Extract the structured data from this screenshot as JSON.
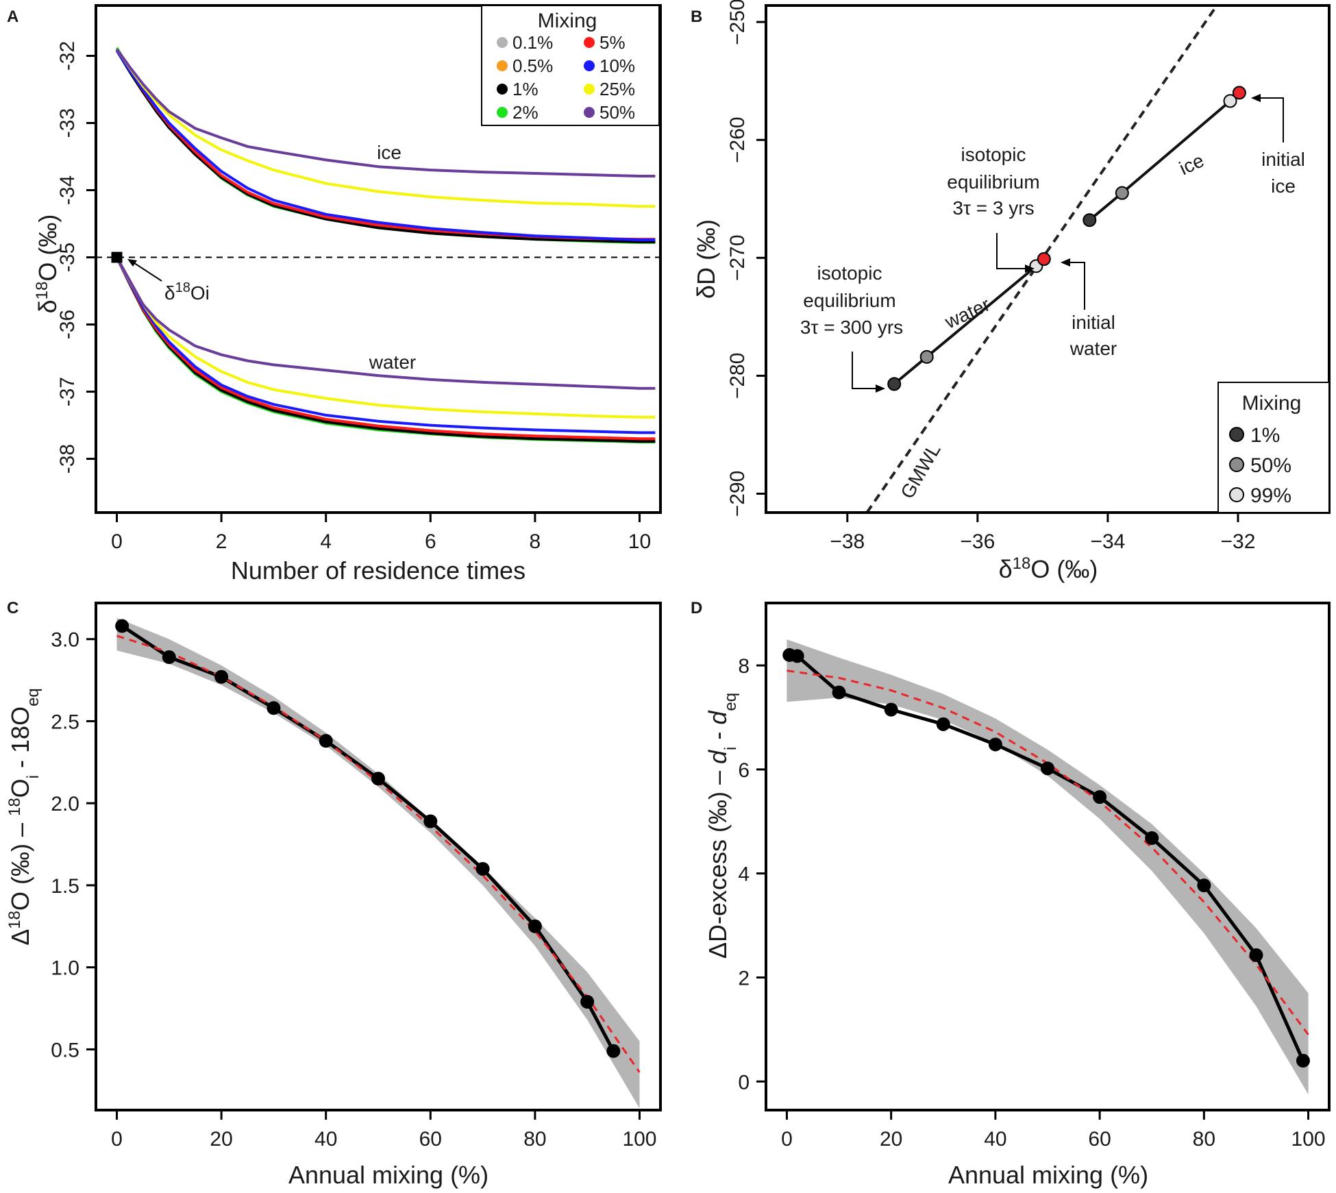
{
  "figure": {
    "panels": [
      "A",
      "B",
      "C",
      "D"
    ]
  },
  "chart_data": [
    {
      "panel": "A",
      "type": "line",
      "title": "",
      "xlabel": "Number of residence times",
      "ylabel": "δ18O (‰)",
      "xlim": [
        -0.4,
        10.4
      ],
      "ylim": [
        -38.8,
        -31.25
      ],
      "xticks": [
        0,
        2,
        4,
        6,
        8,
        10
      ],
      "yticks": [
        -32,
        -33,
        -34,
        -35,
        -36,
        -37,
        -38
      ],
      "reference_line": {
        "y": -35,
        "style": "dashed"
      },
      "start_point": {
        "x": 0,
        "y": -35,
        "label": "δ18Oi"
      },
      "annotations": [
        {
          "text": "ice",
          "x": 5.2,
          "y": -33.55
        },
        {
          "text": "water",
          "x": 5.3,
          "y": -36.6
        }
      ],
      "x": [
        0,
        0.25,
        0.5,
        0.75,
        1,
        1.5,
        2,
        2.5,
        3,
        4,
        5,
        6,
        7,
        8,
        9,
        10,
        10.3
      ],
      "series": [
        {
          "name": "0.1%",
          "color": "#b3b3b3",
          "group": "ice",
          "values": [
            -31.9,
            -32.22,
            -32.52,
            -32.8,
            -33.05,
            -33.45,
            -33.8,
            -34.05,
            -34.22,
            -34.42,
            -34.55,
            -34.63,
            -34.68,
            -34.72,
            -34.74,
            -34.76,
            -34.76
          ]
        },
        {
          "name": "0.5%",
          "color": "#f59c1a",
          "group": "ice",
          "values": [
            -31.9,
            -32.22,
            -32.52,
            -32.8,
            -33.05,
            -33.45,
            -33.8,
            -34.05,
            -34.22,
            -34.42,
            -34.55,
            -34.63,
            -34.68,
            -34.72,
            -34.74,
            -34.76,
            -34.76
          ]
        },
        {
          "name": "1%",
          "color": "#000000",
          "group": "ice",
          "values": [
            -31.92,
            -32.24,
            -32.54,
            -32.82,
            -33.07,
            -33.47,
            -33.81,
            -34.06,
            -34.23,
            -34.43,
            -34.56,
            -34.64,
            -34.69,
            -34.73,
            -34.75,
            -34.77,
            -34.77
          ]
        },
        {
          "name": "2%",
          "color": "#1ee11e",
          "group": "ice",
          "values": [
            -31.88,
            -32.2,
            -32.5,
            -32.79,
            -33.05,
            -33.46,
            -33.82,
            -34.07,
            -34.24,
            -34.43,
            -34.56,
            -34.64,
            -34.69,
            -34.73,
            -34.76,
            -34.78,
            -34.78
          ]
        },
        {
          "name": "5%",
          "color": "#ff1a1a",
          "group": "ice",
          "values": [
            -31.9,
            -32.21,
            -32.51,
            -32.78,
            -33.03,
            -33.43,
            -33.78,
            -34.03,
            -34.2,
            -34.4,
            -34.52,
            -34.6,
            -34.65,
            -34.69,
            -34.72,
            -34.73,
            -34.73
          ]
        },
        {
          "name": "10%",
          "color": "#1a1aff",
          "group": "ice",
          "values": [
            -31.92,
            -32.22,
            -32.5,
            -32.76,
            -33.0,
            -33.38,
            -33.72,
            -33.97,
            -34.15,
            -34.36,
            -34.48,
            -34.57,
            -34.63,
            -34.68,
            -34.71,
            -34.74,
            -34.74
          ]
        },
        {
          "name": "25%",
          "color": "#f5f50a",
          "group": "ice",
          "values": [
            -31.9,
            -32.18,
            -32.45,
            -32.68,
            -32.88,
            -33.18,
            -33.4,
            -33.56,
            -33.7,
            -33.9,
            -34.02,
            -34.1,
            -34.15,
            -34.19,
            -34.21,
            -34.24,
            -34.24
          ]
        },
        {
          "name": "50%",
          "color": "#6a3d9a",
          "group": "ice",
          "values": [
            -31.9,
            -32.17,
            -32.42,
            -32.64,
            -32.83,
            -33.08,
            -33.22,
            -33.35,
            -33.42,
            -33.55,
            -33.65,
            -33.7,
            -33.73,
            -33.75,
            -33.77,
            -33.79,
            -33.79
          ]
        },
        {
          "name": "0.1%",
          "color": "#b3b3b3",
          "group": "water",
          "values": [
            -35.0,
            -35.4,
            -35.78,
            -36.08,
            -36.33,
            -36.72,
            -36.98,
            -37.15,
            -37.28,
            -37.45,
            -37.55,
            -37.61,
            -37.66,
            -37.69,
            -37.71,
            -37.73,
            -37.73
          ]
        },
        {
          "name": "0.5%",
          "color": "#f59c1a",
          "group": "water",
          "values": [
            -35.0,
            -35.4,
            -35.78,
            -36.08,
            -36.33,
            -36.72,
            -36.98,
            -37.15,
            -37.28,
            -37.45,
            -37.55,
            -37.62,
            -37.67,
            -37.7,
            -37.72,
            -37.74,
            -37.74
          ]
        },
        {
          "name": "1%",
          "color": "#000000",
          "group": "water",
          "values": [
            -35.0,
            -35.4,
            -35.78,
            -36.08,
            -36.33,
            -36.72,
            -36.98,
            -37.15,
            -37.28,
            -37.45,
            -37.55,
            -37.62,
            -37.67,
            -37.7,
            -37.72,
            -37.74,
            -37.74
          ]
        },
        {
          "name": "2%",
          "color": "#1ee11e",
          "group": "water",
          "values": [
            -35.0,
            -35.4,
            -35.79,
            -36.1,
            -36.35,
            -36.74,
            -37.0,
            -37.17,
            -37.3,
            -37.47,
            -37.57,
            -37.63,
            -37.68,
            -37.71,
            -37.73,
            -37.75,
            -37.75
          ]
        },
        {
          "name": "5%",
          "color": "#ff1a1a",
          "group": "water",
          "values": [
            -35.0,
            -35.39,
            -35.77,
            -36.06,
            -36.3,
            -36.68,
            -36.94,
            -37.11,
            -37.24,
            -37.41,
            -37.51,
            -37.58,
            -37.63,
            -37.66,
            -37.68,
            -37.7,
            -37.7
          ]
        },
        {
          "name": "10%",
          "color": "#1a1aff",
          "group": "water",
          "values": [
            -35.0,
            -35.38,
            -35.74,
            -36.02,
            -36.26,
            -36.63,
            -36.9,
            -37.07,
            -37.19,
            -37.35,
            -37.44,
            -37.5,
            -37.54,
            -37.57,
            -37.59,
            -37.61,
            -37.61
          ]
        },
        {
          "name": "25%",
          "color": "#f5f50a",
          "group": "water",
          "values": [
            -35.0,
            -35.36,
            -35.7,
            -35.97,
            -36.18,
            -36.48,
            -36.7,
            -36.86,
            -36.97,
            -37.1,
            -37.2,
            -37.26,
            -37.3,
            -37.33,
            -37.36,
            -37.38,
            -37.38
          ]
        },
        {
          "name": "50%",
          "color": "#6a3d9a",
          "group": "water",
          "values": [
            -35.0,
            -35.35,
            -35.7,
            -35.92,
            -36.08,
            -36.32,
            -36.45,
            -36.54,
            -36.6,
            -36.68,
            -36.76,
            -36.82,
            -36.86,
            -36.89,
            -36.92,
            -36.95,
            -36.95
          ]
        }
      ],
      "legend": {
        "title": "Mixing",
        "position": "top-right",
        "entries": [
          {
            "label": "0.1%",
            "color": "#b3b3b3"
          },
          {
            "label": "0.5%",
            "color": "#f59c1a"
          },
          {
            "label": "1%",
            "color": "#000000"
          },
          {
            "label": "2%",
            "color": "#1ee11e"
          },
          {
            "label": "5%",
            "color": "#ff1a1a"
          },
          {
            "label": "10%",
            "color": "#1a1aff"
          },
          {
            "label": "25%",
            "color": "#f5f50a"
          },
          {
            "label": "50%",
            "color": "#6a3d9a"
          }
        ]
      }
    },
    {
      "panel": "B",
      "type": "scatter",
      "title": "",
      "xlabel": "δ18O (‰)",
      "ylabel": "δD (‰)",
      "xlim": [
        -39.25,
        -30.6
      ],
      "ylim": [
        -291.6,
        -248.6
      ],
      "xticks": [
        -38,
        -36,
        -34,
        -32
      ],
      "yticks": [
        -250,
        -260,
        -270,
        -280,
        -290
      ],
      "gmwl": {
        "label": "GMWL",
        "slope": 8,
        "intercept": 10,
        "style": "dashed"
      },
      "series": [
        {
          "name": "water",
          "points": [
            {
              "x": -35.1,
              "y": -270.7,
              "mixing": "99%"
            },
            {
              "x": -36.78,
              "y": -278.4,
              "mixing": "50%"
            },
            {
              "x": -37.28,
              "y": -280.7,
              "mixing": "1%"
            }
          ]
        },
        {
          "name": "ice",
          "points": [
            {
              "x": -34.28,
              "y": -266.8,
              "mixing": "1%"
            },
            {
              "x": -33.78,
              "y": -264.5,
              "mixing": "50%"
            },
            {
              "x": -32.12,
              "y": -256.7,
              "mixing": "99%"
            }
          ]
        }
      ],
      "initial_points": [
        {
          "label": "initial water",
          "x": -34.98,
          "y": -270.1,
          "color": "#e8262a"
        },
        {
          "label": "initial ice",
          "x": -31.98,
          "y": -256.0,
          "color": "#e8262a"
        }
      ],
      "annotations": [
        {
          "lines": [
            "isotopic",
            "equilibrium",
            "3τ = 3 yrs"
          ]
        },
        {
          "lines": [
            "isotopic",
            "equilibrium",
            "3τ = 300 yrs"
          ]
        },
        {
          "lines": [
            "initial",
            "water"
          ]
        },
        {
          "lines": [
            "initial",
            "ice"
          ]
        },
        {
          "text": "water"
        },
        {
          "text": "ice"
        }
      ],
      "legend": {
        "title": "Mixing",
        "position": "bottom-right",
        "entries": [
          {
            "label": "1%",
            "color": "#3a3a3a"
          },
          {
            "label": "50%",
            "color": "#8c8c8c"
          },
          {
            "label": "99%",
            "color": "#e2e2e2"
          }
        ]
      }
    },
    {
      "panel": "C",
      "type": "line",
      "title": "",
      "xlabel": "Annual mixing (%)",
      "ylabel": "Δ18O (‰) – 18Oi - 18Oeq",
      "ylabel_parts": {
        "main": "Δ",
        "sup": "18",
        "mid": "O (‰) – ",
        "r1": "18",
        "r1b": "O",
        "sub1": "i",
        "r2": " - 18O",
        "sub2": "eq"
      },
      "xlim": [
        -4,
        104
      ],
      "ylim": [
        0.13,
        3.22
      ],
      "xticks": [
        0,
        20,
        40,
        60,
        80,
        100
      ],
      "yticks": [
        0.5,
        1.0,
        1.5,
        2.0,
        2.5,
        3.0
      ],
      "ytick_labels": [
        "0.5",
        "1.0",
        "1.5",
        "2.0",
        "2.5",
        "3.0"
      ],
      "x": [
        1,
        10,
        20,
        30,
        40,
        50,
        60,
        70,
        80,
        90,
        95
      ],
      "values": [
        3.08,
        2.89,
        2.77,
        2.58,
        2.38,
        2.15,
        1.89,
        1.6,
        1.25,
        0.79,
        0.49
      ],
      "fit": {
        "x": [
          0,
          10,
          20,
          30,
          40,
          50,
          60,
          70,
          80,
          90,
          100
        ],
        "y": [
          3.02,
          2.92,
          2.77,
          2.59,
          2.38,
          2.13,
          1.86,
          1.56,
          1.22,
          0.82,
          0.36
        ],
        "band_low": [
          2.93,
          2.85,
          2.72,
          2.55,
          2.35,
          2.1,
          1.82,
          1.5,
          1.13,
          0.68,
          0.14
        ],
        "band_high": [
          3.13,
          3.0,
          2.84,
          2.65,
          2.43,
          2.18,
          1.9,
          1.61,
          1.3,
          0.97,
          0.55
        ]
      }
    },
    {
      "panel": "D",
      "type": "line",
      "title": "",
      "xlabel": "Annual mixing (%)",
      "ylabel": "ΔD-excess (‰) – di - deq",
      "ylabel_parts": {
        "main": "ΔD-excess (‰) – ",
        "d1": "d",
        "sub1": "i",
        "mid": " - ",
        "d2": "d",
        "sub2": "eq"
      },
      "xlim": [
        -4,
        104
      ],
      "ylim": [
        -0.55,
        9.2
      ],
      "xticks": [
        0,
        20,
        40,
        60,
        80,
        100
      ],
      "yticks": [
        0,
        2,
        4,
        6,
        8
      ],
      "ytick_labels": [
        "0",
        "2",
        "4",
        "6",
        "8"
      ],
      "x": [
        0.5,
        2,
        10,
        20,
        30,
        40,
        50,
        60,
        70,
        80,
        90,
        99
      ],
      "values": [
        8.2,
        8.18,
        7.48,
        7.15,
        6.87,
        6.48,
        6.02,
        5.47,
        4.68,
        3.77,
        2.43,
        0.4
      ],
      "fit": {
        "x": [
          0,
          10,
          20,
          30,
          40,
          50,
          60,
          70,
          80,
          90,
          100
        ],
        "y": [
          7.9,
          7.76,
          7.52,
          7.18,
          6.72,
          6.12,
          5.38,
          4.5,
          3.45,
          2.25,
          0.9
        ],
        "band_low": [
          7.3,
          7.38,
          7.25,
          6.95,
          6.5,
          5.88,
          5.05,
          4.05,
          2.85,
          1.45,
          -0.25
        ],
        "band_high": [
          8.5,
          8.15,
          7.82,
          7.45,
          6.98,
          6.38,
          5.7,
          4.95,
          4.0,
          2.95,
          1.7
        ]
      }
    }
  ]
}
